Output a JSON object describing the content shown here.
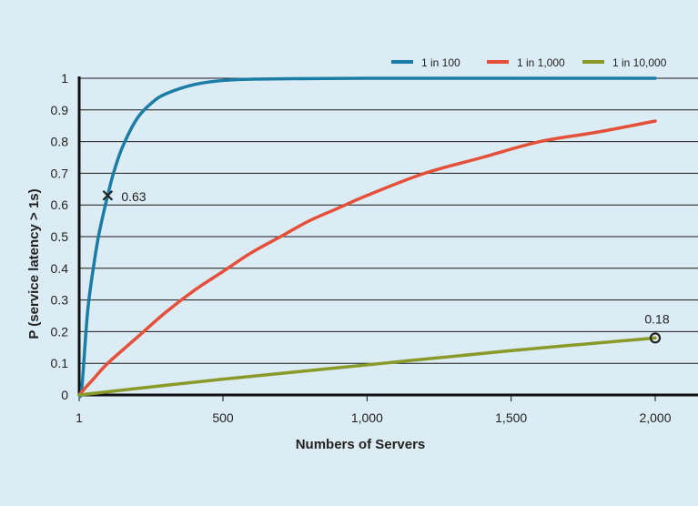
{
  "chart_data": {
    "type": "line",
    "xlabel": "Numbers of Servers",
    "ylabel": "P (service latency > 1s)",
    "xlim": [
      1,
      2000
    ],
    "ylim": [
      0,
      1
    ],
    "x_ticks": [
      1,
      500,
      1000,
      1500,
      2000
    ],
    "x_tick_labels": [
      "1",
      "500",
      "1,000",
      "1,500",
      "2,000"
    ],
    "y_ticks": [
      0,
      0.1,
      0.2,
      0.3,
      0.4,
      0.5,
      0.6,
      0.7,
      0.8,
      0.9,
      1
    ],
    "y_tick_labels": [
      "0",
      "0.1",
      "0.2",
      "0.3",
      "0.4",
      "0.5",
      "0.6",
      "0.7",
      "0.8",
      "0.9",
      "1"
    ],
    "grid": "horizontal",
    "legend_position": "top-right",
    "series": [
      {
        "name": "1 in 100",
        "color": "#1b7da6",
        "x": [
          1,
          10,
          30,
          50,
          70,
          100,
          120,
          150,
          200,
          250,
          300,
          400,
          500,
          600,
          800,
          1000,
          1500,
          2000
        ],
        "y": [
          0.0,
          0.02,
          0.26,
          0.4,
          0.51,
          0.63,
          0.7,
          0.78,
          0.87,
          0.92,
          0.95,
          0.98,
          0.993,
          0.997,
          0.999,
          1.0,
          1.0,
          1.0
        ]
      },
      {
        "name": "1 in 1,000",
        "color": "#e5503a",
        "x": [
          1,
          20,
          50,
          100,
          200,
          300,
          400,
          500,
          600,
          700,
          800,
          900,
          1000,
          1200,
          1400,
          1600,
          1800,
          2000
        ],
        "y": [
          0.0,
          0.02,
          0.05,
          0.1,
          0.18,
          0.26,
          0.33,
          0.39,
          0.45,
          0.5,
          0.55,
          0.59,
          0.63,
          0.7,
          0.75,
          0.8,
          0.83,
          0.865
        ]
      },
      {
        "name": "1 in 10,000",
        "color": "#8a9a29",
        "x": [
          1,
          500,
          1000,
          1500,
          2000
        ],
        "y": [
          0.0,
          0.05,
          0.095,
          0.14,
          0.18
        ]
      }
    ],
    "annotations": [
      {
        "series": "1 in 100",
        "x": 100,
        "y": 0.63,
        "marker": "x",
        "label": "0.63"
      },
      {
        "series": "1 in 10,000",
        "x": 2000,
        "y": 0.18,
        "marker": "circle",
        "label": "0.18"
      }
    ]
  }
}
